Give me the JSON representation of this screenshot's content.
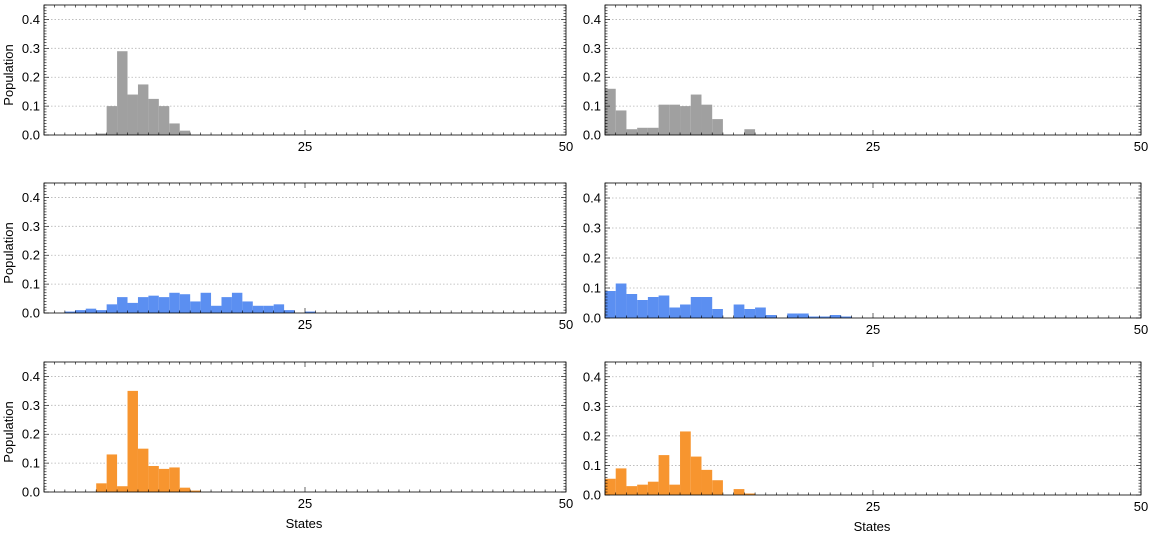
{
  "chart_data": [
    {
      "type": "bar",
      "ylabel": "Population",
      "xlabel": "",
      "xlim": [
        0,
        50
      ],
      "ylim": [
        0,
        0.45
      ],
      "xticks": [
        "25",
        "50"
      ],
      "yticks": [
        "0.0",
        "0.1",
        "0.2",
        "0.3",
        "0.4"
      ],
      "grid": "horizontal-dotted",
      "color": "#a0a0a0",
      "x": [
        5,
        6,
        7,
        8,
        9,
        10,
        11,
        12,
        13,
        14
      ],
      "values": [
        0.005,
        0.1,
        0.29,
        0.14,
        0.175,
        0.125,
        0.1,
        0.04,
        0.015,
        0.0
      ]
    },
    {
      "type": "bar",
      "ylabel": "",
      "xlabel": "",
      "xlim": [
        0,
        50
      ],
      "ylim": [
        0,
        0.45
      ],
      "xticks": [
        "25",
        "50"
      ],
      "yticks": [
        "0.0",
        "0.1",
        "0.2",
        "0.3",
        "0.4"
      ],
      "grid": "horizontal-dotted",
      "color": "#a0a0a0",
      "x": [
        0,
        1,
        2,
        3,
        4,
        5,
        6,
        7,
        8,
        9,
        10,
        11,
        12,
        13,
        14
      ],
      "values": [
        0.16,
        0.085,
        0.02,
        0.025,
        0.025,
        0.105,
        0.105,
        0.1,
        0.14,
        0.105,
        0.055,
        0.0,
        0.0,
        0.02,
        0.0
      ]
    },
    {
      "type": "bar",
      "ylabel": "Population",
      "xlabel": "",
      "xlim": [
        0,
        50
      ],
      "ylim": [
        0,
        0.45
      ],
      "xticks": [
        "25",
        "50"
      ],
      "yticks": [
        "0.0",
        "0.1",
        "0.2",
        "0.3",
        "0.4"
      ],
      "grid": "horizontal-dotted",
      "color": "#5b8ff1",
      "x": [
        2,
        3,
        4,
        5,
        6,
        7,
        8,
        9,
        10,
        11,
        12,
        13,
        14,
        15,
        16,
        17,
        18,
        19,
        20,
        21,
        22,
        23,
        24,
        25,
        26
      ],
      "values": [
        0.005,
        0.01,
        0.015,
        0.01,
        0.03,
        0.055,
        0.035,
        0.055,
        0.06,
        0.055,
        0.07,
        0.065,
        0.04,
        0.07,
        0.025,
        0.055,
        0.07,
        0.04,
        0.025,
        0.025,
        0.03,
        0.01,
        0.0,
        0.005,
        0.0
      ]
    },
    {
      "type": "bar",
      "ylabel": "",
      "xlabel": "",
      "xlim": [
        0,
        50
      ],
      "ylim": [
        0,
        0.45
      ],
      "xticks": [
        "25",
        "50"
      ],
      "yticks": [
        "0.0",
        "0.1",
        "0.2",
        "0.3",
        "0.4"
      ],
      "grid": "horizontal-dotted",
      "color": "#5b8ff1",
      "x": [
        0,
        1,
        2,
        3,
        4,
        5,
        6,
        7,
        8,
        9,
        10,
        11,
        12,
        13,
        14,
        15,
        16,
        17,
        18,
        19,
        20,
        21,
        22,
        23
      ],
      "values": [
        0.09,
        0.115,
        0.08,
        0.06,
        0.07,
        0.075,
        0.035,
        0.045,
        0.07,
        0.07,
        0.03,
        0.0,
        0.045,
        0.03,
        0.035,
        0.01,
        0.0,
        0.015,
        0.015,
        0.005,
        0.005,
        0.01,
        0.005,
        0.0
      ]
    },
    {
      "type": "bar",
      "ylabel": "Population",
      "xlabel": "States",
      "xlim": [
        0,
        50
      ],
      "ylim": [
        0,
        0.45
      ],
      "xticks": [
        "25",
        "50"
      ],
      "yticks": [
        "0.0",
        "0.1",
        "0.2",
        "0.3",
        "0.4"
      ],
      "grid": "horizontal-dotted",
      "color": "#f7952f",
      "x": [
        5,
        6,
        7,
        8,
        9,
        10,
        11,
        12,
        13,
        14,
        15
      ],
      "values": [
        0.03,
        0.13,
        0.02,
        0.35,
        0.15,
        0.09,
        0.08,
        0.085,
        0.015,
        0.005,
        0.0
      ]
    },
    {
      "type": "bar",
      "ylabel": "",
      "xlabel": "States",
      "xlim": [
        0,
        50
      ],
      "ylim": [
        0,
        0.45
      ],
      "xticks": [
        "25",
        "50"
      ],
      "yticks": [
        "0.0",
        "0.1",
        "0.2",
        "0.3",
        "0.4"
      ],
      "grid": "horizontal-dotted",
      "color": "#f7952f",
      "x": [
        0,
        1,
        2,
        3,
        4,
        5,
        6,
        7,
        8,
        9,
        10,
        11,
        12,
        13,
        14,
        15
      ],
      "values": [
        0.055,
        0.09,
        0.03,
        0.035,
        0.045,
        0.135,
        0.035,
        0.215,
        0.13,
        0.085,
        0.05,
        0.0,
        0.02,
        0.005,
        0.0,
        0.0
      ]
    }
  ]
}
